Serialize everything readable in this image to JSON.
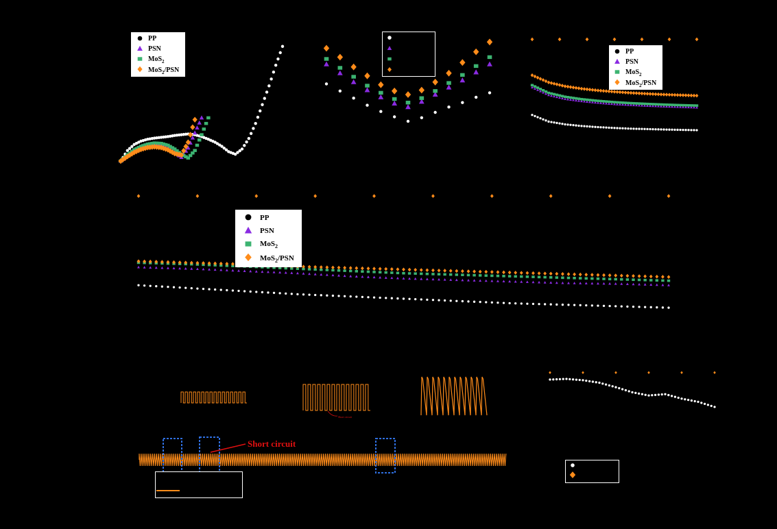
{
  "colors": {
    "background": "#000000",
    "pp": "#ffffff",
    "psn": "#8a2be2",
    "mos2": "#3cb371",
    "mos2psn": "#ff8c1a",
    "highlight_box": "#2f6fe0",
    "annotation_red": "#e01010"
  },
  "legend": {
    "series": [
      {
        "label": "PP",
        "key": "pp",
        "marker": "circle"
      },
      {
        "label": "PSN",
        "key": "psn",
        "marker": "triangle"
      },
      {
        "label": "MoS",
        "sub": "2",
        "key": "mos2",
        "marker": "square"
      },
      {
        "label": "MoS",
        "sub": "2",
        "tail": "/PSN",
        "key": "mos2psn",
        "marker": "diamond"
      }
    ]
  },
  "annotations": {
    "short_circuit": "Short circuit",
    "small_red": "Short circuit"
  },
  "chart_data": [
    {
      "type": "scatter",
      "series": [
        {
          "key": "pp",
          "x": [
            0,
            1,
            2,
            3,
            4,
            5,
            6,
            7,
            8,
            9,
            10,
            11,
            12,
            13,
            14,
            15,
            16,
            17,
            18,
            19,
            20,
            21,
            22,
            23,
            24
          ],
          "y": [
            0,
            2.8,
            4.4,
            5.3,
            5.8,
            6.1,
            6.3,
            6.5,
            6.8,
            7.0,
            7.2,
            7.0,
            6.5,
            5.8,
            5.0,
            3.9,
            2.5,
            1.8,
            3.2,
            6.0,
            10.0,
            15.0,
            20.0,
            25.5,
            30.5
          ]
        },
        {
          "key": "psn",
          "x": [
            0,
            1,
            2,
            3,
            4,
            5,
            6,
            7,
            8,
            9,
            10,
            11,
            12
          ],
          "y": [
            0,
            1.5,
            2.8,
            3.7,
            4.2,
            4.4,
            4.1,
            3.4,
            2.3,
            1.0,
            3.5,
            7.5,
            11.5
          ]
        },
        {
          "key": "mos2",
          "x": [
            0,
            1,
            2,
            3,
            4,
            5,
            6,
            7,
            8,
            9,
            10,
            11,
            12,
            13
          ],
          "y": [
            0,
            1.7,
            3.0,
            3.9,
            4.5,
            4.8,
            4.7,
            4.2,
            3.2,
            1.8,
            0.8,
            2.8,
            7.0,
            11.5
          ]
        },
        {
          "key": "mos2psn",
          "x": [
            0,
            1,
            2,
            3,
            4,
            5,
            6,
            7,
            8,
            9,
            10,
            11
          ],
          "y": [
            0,
            1.2,
            2.3,
            3.1,
            3.6,
            3.8,
            3.6,
            3.0,
            2.0,
            1.6,
            5.0,
            11.0
          ]
        }
      ]
    },
    {
      "type": "scatter",
      "series": [
        {
          "key": "pp",
          "x": [
            0,
            1,
            2,
            3,
            4,
            5,
            6,
            7,
            8,
            9,
            10,
            11,
            12
          ],
          "y": [
            5.2,
            4.4,
            3.6,
            2.8,
            2.1,
            1.5,
            1.0,
            1.4,
            2.0,
            2.6,
            3.1,
            3.7,
            4.2
          ]
        },
        {
          "key": "psn",
          "x": [
            0,
            1,
            2,
            3,
            4,
            5,
            6,
            7,
            8,
            9,
            10,
            11,
            12
          ],
          "y": [
            7.4,
            6.4,
            5.4,
            4.5,
            3.7,
            3.0,
            2.6,
            3.2,
            4.0,
            4.8,
            5.6,
            6.5,
            7.4
          ]
        },
        {
          "key": "mos2",
          "x": [
            0,
            1,
            2,
            3,
            4,
            5,
            6,
            7,
            8,
            9,
            10,
            11,
            12
          ],
          "y": [
            8.0,
            7.0,
            6.0,
            5.0,
            4.2,
            3.5,
            3.1,
            3.6,
            4.4,
            5.3,
            6.2,
            7.2,
            8.2
          ]
        },
        {
          "key": "mos2psn",
          "x": [
            0,
            1,
            2,
            3,
            4,
            5,
            6,
            7,
            8,
            9,
            10,
            11,
            12
          ],
          "y": [
            9.2,
            8.2,
            7.1,
            6.1,
            5.1,
            4.4,
            4.0,
            4.5,
            5.4,
            6.4,
            7.6,
            8.8,
            9.9
          ]
        }
      ]
    },
    {
      "type": "scatter",
      "series": [
        {
          "key": "pp",
          "x": [
            0,
            10,
            20,
            30,
            40,
            50,
            60,
            70,
            80,
            90,
            100
          ],
          "y": [
            30,
            24,
            21.5,
            20,
            19,
            18.2,
            17.6,
            17.2,
            16.8,
            16.5,
            16.2
          ]
        },
        {
          "key": "psn",
          "x": [
            0,
            10,
            20,
            30,
            40,
            50,
            60,
            70,
            80,
            90,
            100
          ],
          "y": [
            55,
            48,
            44.5,
            42.5,
            41,
            39.8,
            39,
            38.3,
            37.7,
            37.2,
            36.8
          ]
        },
        {
          "key": "mos2",
          "x": [
            0,
            10,
            20,
            30,
            40,
            50,
            60,
            70,
            80,
            90,
            100
          ],
          "y": [
            57,
            50,
            46.5,
            44.3,
            42.8,
            41.6,
            40.7,
            40,
            39.4,
            38.9,
            38.5
          ]
        },
        {
          "key": "mos2psn",
          "x": [
            0,
            10,
            20,
            30,
            40,
            50,
            60,
            70,
            80,
            90,
            100
          ],
          "y": [
            66,
            59.5,
            56,
            53.8,
            52.2,
            51,
            50,
            49.2,
            48.5,
            48,
            47.5
          ]
        },
        {
          "key": "mos2psn_ce",
          "x": [
            0,
            100
          ],
          "y": [
            98.5,
            98.5
          ]
        }
      ]
    },
    {
      "type": "scatter",
      "series": [
        {
          "key": "pp",
          "x": [
            0,
            100,
            200,
            300,
            400,
            500,
            600,
            700,
            800,
            900,
            1000
          ],
          "y": [
            40,
            38,
            36,
            34,
            32.5,
            31,
            29.5,
            28,
            27,
            26,
            25
          ]
        },
        {
          "key": "psn",
          "x": [
            0,
            100,
            200,
            300,
            400,
            500,
            600,
            700,
            800,
            900,
            1000
          ],
          "y": [
            52,
            51,
            49.5,
            48,
            46,
            44.5,
            43.5,
            42.5,
            41.5,
            41,
            40
          ]
        },
        {
          "key": "mos2",
          "x": [
            0,
            100,
            200,
            300,
            400,
            500,
            600,
            700,
            800,
            900,
            1000
          ],
          "y": [
            55,
            54,
            52.5,
            51,
            49.5,
            48,
            47,
            46,
            45,
            44,
            43
          ]
        },
        {
          "key": "mos2psn",
          "x": [
            0,
            100,
            200,
            300,
            400,
            500,
            600,
            700,
            800,
            900,
            1000
          ],
          "y": [
            56,
            55,
            54,
            52.5,
            51.5,
            50.5,
            49.5,
            48.5,
            47.5,
            46.5,
            45.5
          ]
        },
        {
          "key": "mos2psn_ce",
          "x": [
            0,
            1000
          ],
          "y": [
            99.5,
            99.5
          ]
        }
      ]
    },
    {
      "type": "line",
      "series": [
        {
          "key": "mos2psn",
          "x": [
            0,
            1000
          ],
          "y": [
            0.03,
            0.03
          ]
        }
      ]
    },
    {
      "type": "scatter",
      "series": [
        {
          "key": "mos2psn",
          "x": [
            0,
            500
          ],
          "y": [
            99.6,
            99.6
          ]
        },
        {
          "key": "pp",
          "x": [
            0,
            50,
            100,
            150,
            200,
            250,
            300,
            350,
            400,
            450,
            500
          ],
          "y": [
            98.5,
            98.6,
            98.4,
            98.0,
            97.3,
            96.5,
            96.0,
            96.2,
            95.5,
            95.0,
            94.2
          ]
        }
      ]
    }
  ]
}
